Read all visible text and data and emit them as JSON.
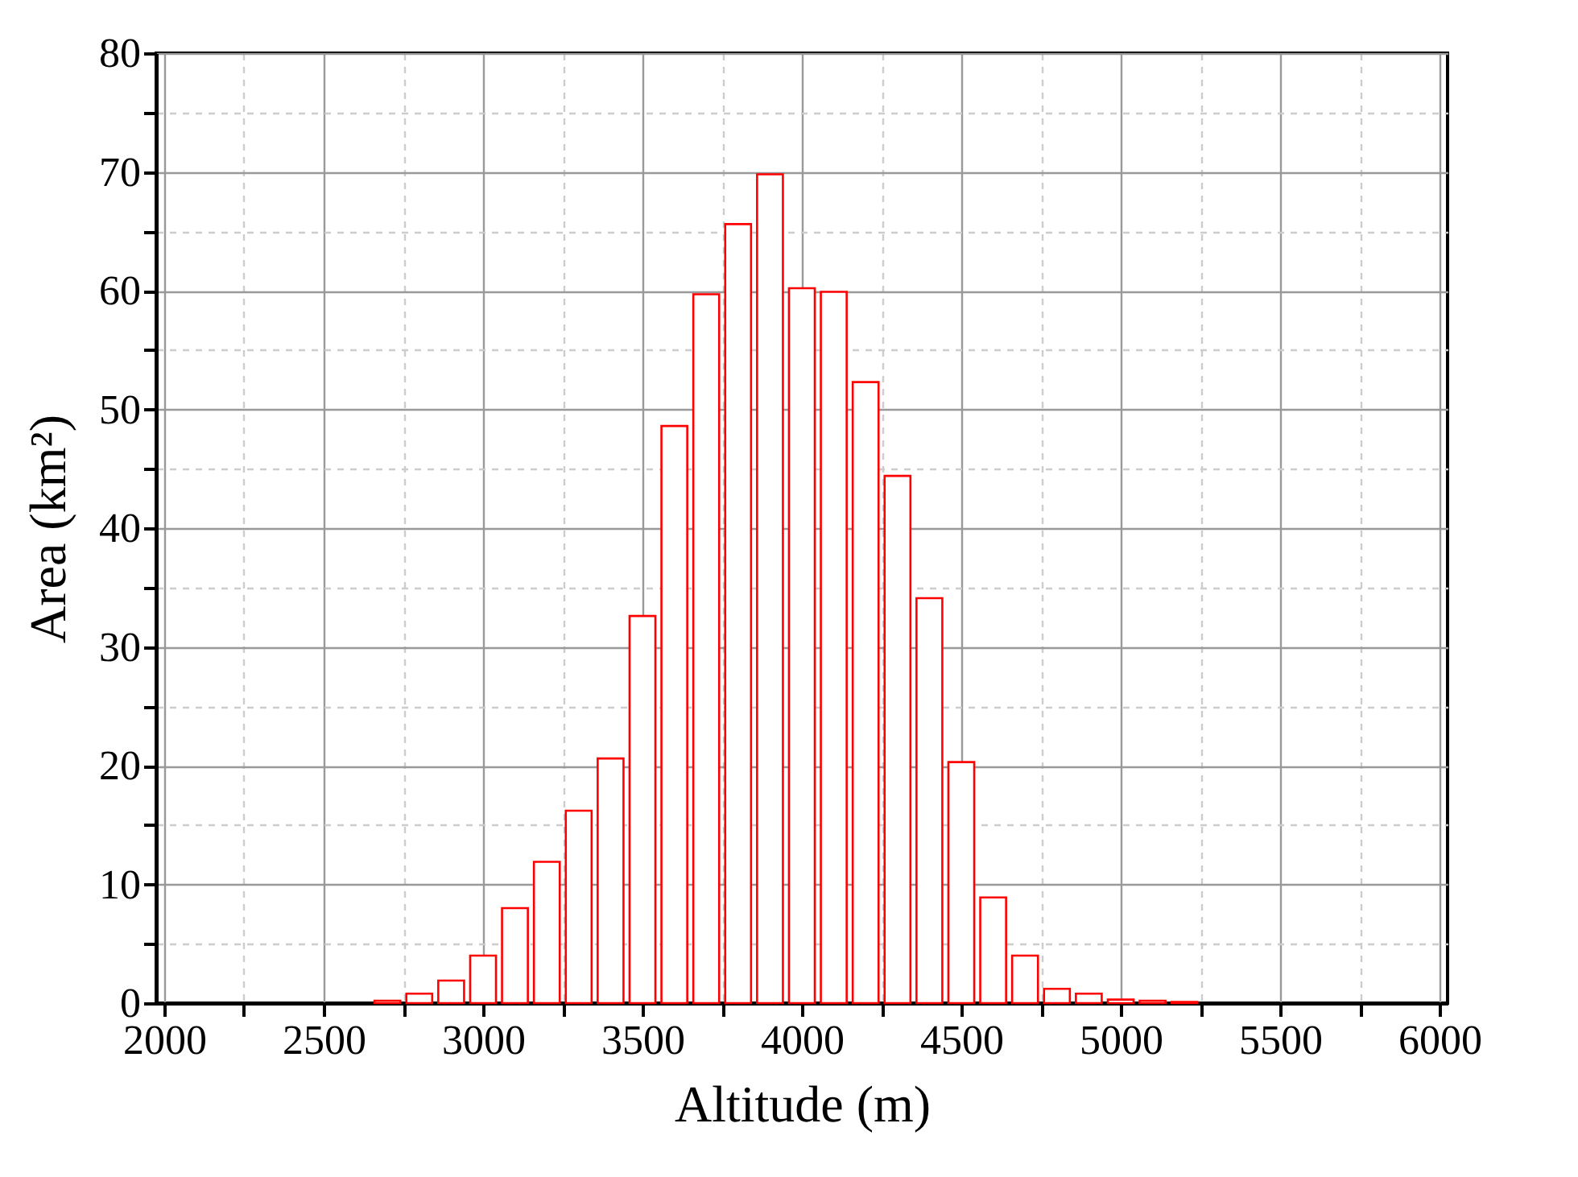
{
  "chart_data": {
    "type": "bar",
    "xlabel": "Altitude (m)",
    "ylabel": "Area (km²)",
    "x": [
      2700,
      2800,
      2900,
      3000,
      3100,
      3200,
      3300,
      3400,
      3500,
      3600,
      3700,
      3800,
      3900,
      4000,
      4100,
      4200,
      4300,
      4400,
      4500,
      4600,
      4700,
      4800,
      4900,
      5000,
      5100,
      5200
    ],
    "values": [
      0.2,
      0.8,
      1.9,
      4.0,
      8.0,
      11.9,
      16.2,
      20.6,
      32.6,
      48.6,
      59.7,
      65.6,
      69.8,
      60.2,
      59.9,
      52.3,
      44.4,
      34.1,
      20.3,
      8.9,
      4.0,
      1.2,
      0.8,
      0.3,
      0.2,
      0.1
    ],
    "color": "#ff0000",
    "xlim": [
      2000,
      6000
    ],
    "xticks": [
      2000,
      {
        "value": 2250,
        "label": null
      },
      2500,
      {
        "value": 2750,
        "label": null
      },
      3000,
      {
        "value": 3250,
        "label": null
      },
      3500,
      {
        "value": 3750,
        "label": null
      },
      4000,
      {
        "value": 4250,
        "label": null
      },
      4500,
      {
        "value": 4750,
        "label": null
      },
      5000,
      {
        "value": 5250,
        "label": null
      },
      5500,
      {
        "value": 5750,
        "label": null
      },
      6000
    ],
    "ylim": [
      0,
      80
    ],
    "yticks": [
      0,
      {
        "value": 5,
        "label": null
      },
      10,
      {
        "value": 15,
        "label": null
      },
      20,
      {
        "value": 25,
        "label": null
      },
      30,
      {
        "value": 35,
        "label": null
      },
      40,
      {
        "value": 45,
        "label": null
      },
      50,
      {
        "value": 55,
        "label": null
      },
      60,
      {
        "value": 65,
        "label": null
      },
      70,
      {
        "value": 75,
        "label": null
      },
      80
    ],
    "grid": true
  }
}
